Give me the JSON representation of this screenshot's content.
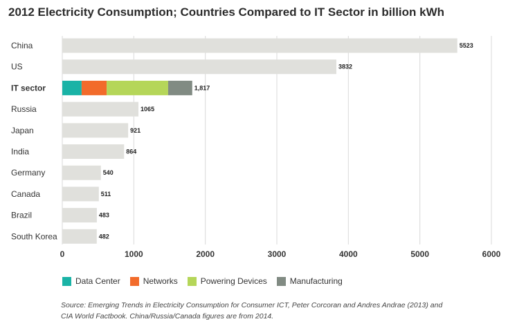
{
  "title": "2012 Electricity Consumption; Countries Compared to IT Sector in billion kWh",
  "chart_data": {
    "type": "bar",
    "orientation": "horizontal",
    "categories": [
      "China",
      "US",
      "IT sector",
      "Russia",
      "Japan",
      "India",
      "Germany",
      "Canada",
      "Brazil",
      "South Korea"
    ],
    "values": [
      5523,
      3832,
      1817,
      1065,
      921,
      864,
      540,
      511,
      483,
      482
    ],
    "value_labels": [
      "5523",
      "3832",
      "1,817",
      "1065",
      "921",
      "864",
      "540",
      "511",
      "483",
      "482"
    ],
    "highlight_category": "IT sector",
    "stacked_breakdown": {
      "category": "IT sector",
      "series": [
        {
          "name": "Data Center",
          "value": 270,
          "color": "#1ab3a6"
        },
        {
          "name": "Networks",
          "value": 350,
          "color": "#f26b2b"
        },
        {
          "name": "Powering Devices",
          "value": 860,
          "color": "#b5d659"
        },
        {
          "name": "Manufacturing",
          "value": 337,
          "color": "#818b83"
        }
      ]
    },
    "bar_color": "#e0e0dc",
    "xlim": [
      0,
      6000
    ],
    "x_ticks": [
      0,
      1000,
      2000,
      3000,
      4000,
      5000,
      6000
    ],
    "x_tick_labels": [
      "0",
      "1000",
      "2000",
      "3000",
      "4000",
      "5000",
      "6000"
    ],
    "grid": true,
    "legend_position": "bottom-left"
  },
  "legend": [
    {
      "label": "Data Center",
      "color": "#1ab3a6"
    },
    {
      "label": "Networks",
      "color": "#f26b2b"
    },
    {
      "label": "Powering Devices",
      "color": "#b5d659"
    },
    {
      "label": "Manufacturing",
      "color": "#818b83"
    }
  ],
  "source_text": "Source: Emerging Trends in Electricity Consumption for Consumer ICT, Peter Corcoran and Andres Andrae (2013) and CIA World Factbook. China/Russia/Canada figures are from 2014."
}
